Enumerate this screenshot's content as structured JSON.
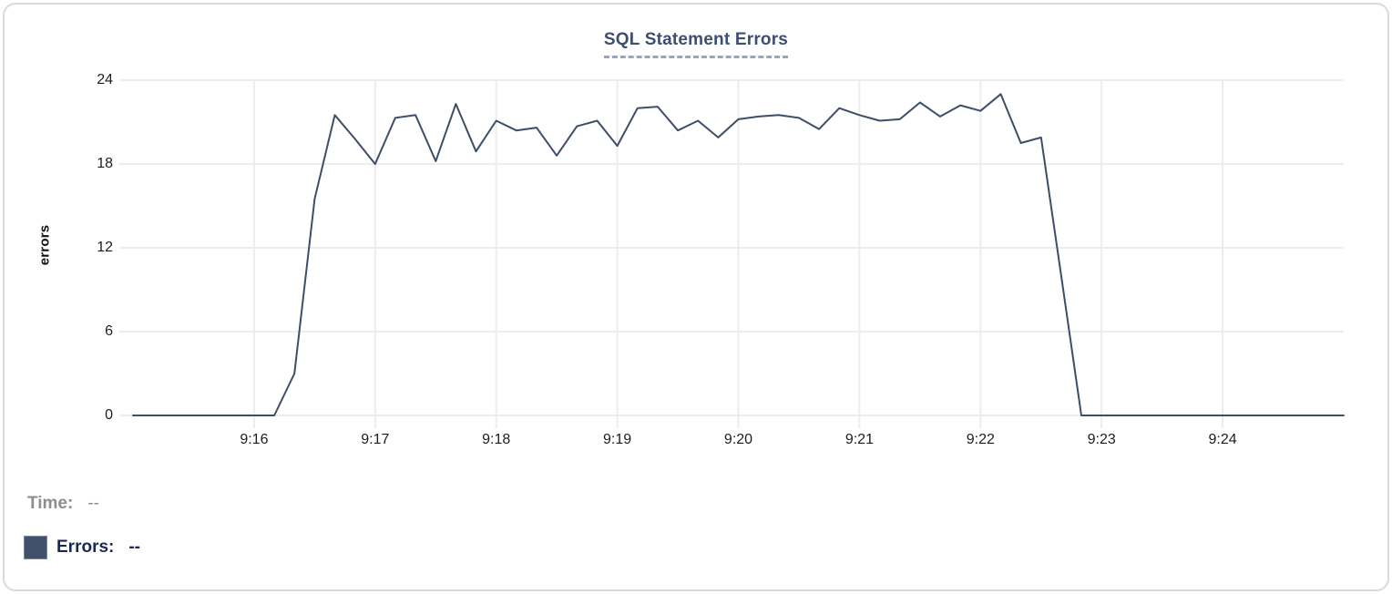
{
  "chart": {
    "title": "SQL Statement Errors",
    "y_axis_label": "errors"
  },
  "tooltip": {
    "time_label": "Time:",
    "time_value": "--",
    "errors_label": "Errors:",
    "errors_value": "--"
  },
  "colors": {
    "line": "#3e4d68",
    "grid": "#ededed",
    "title": "#3d4e71",
    "legend_swatch": "#41506b",
    "tick_text": "#1d1d1f"
  },
  "chart_data": {
    "type": "line",
    "title": "SQL Statement Errors",
    "xlabel": "",
    "ylabel": "errors",
    "x_start": "9:15:00",
    "x_end": "9:25:00",
    "interval_seconds": 10,
    "ylim": [
      0,
      24
    ],
    "y_ticks": [
      0,
      6,
      12,
      18,
      24
    ],
    "x_ticks": [
      {
        "label": "9:16",
        "t_s": 60
      },
      {
        "label": "9:17",
        "t_s": 120
      },
      {
        "label": "9:18",
        "t_s": 180
      },
      {
        "label": "9:19",
        "t_s": 240
      },
      {
        "label": "9:20",
        "t_s": 300
      },
      {
        "label": "9:21",
        "t_s": 360
      },
      {
        "label": "9:22",
        "t_s": 420
      },
      {
        "label": "9:23",
        "t_s": 480
      },
      {
        "label": "9:24",
        "t_s": 540
      }
    ],
    "grid": true,
    "legend_position": "bottom-left",
    "series": [
      {
        "name": "Errors",
        "color": "#3e4d68",
        "values": [
          0,
          0,
          0,
          0,
          0,
          0,
          0,
          0,
          3,
          15.5,
          21.5,
          19.8,
          18,
          21.3,
          21.5,
          18.2,
          22.3,
          18.9,
          21.1,
          20.4,
          20.6,
          18.6,
          20.7,
          21.1,
          19.3,
          22,
          22.1,
          20.4,
          21.1,
          19.9,
          21.2,
          21.4,
          21.5,
          21.3,
          20.5,
          22,
          21.5,
          21.1,
          21.2,
          22.4,
          21.4,
          22.2,
          21.8,
          23,
          19.5,
          19.9,
          10,
          0,
          0,
          0,
          0,
          0,
          0,
          0,
          0,
          0,
          0,
          0,
          0,
          0,
          0
        ]
      }
    ]
  }
}
